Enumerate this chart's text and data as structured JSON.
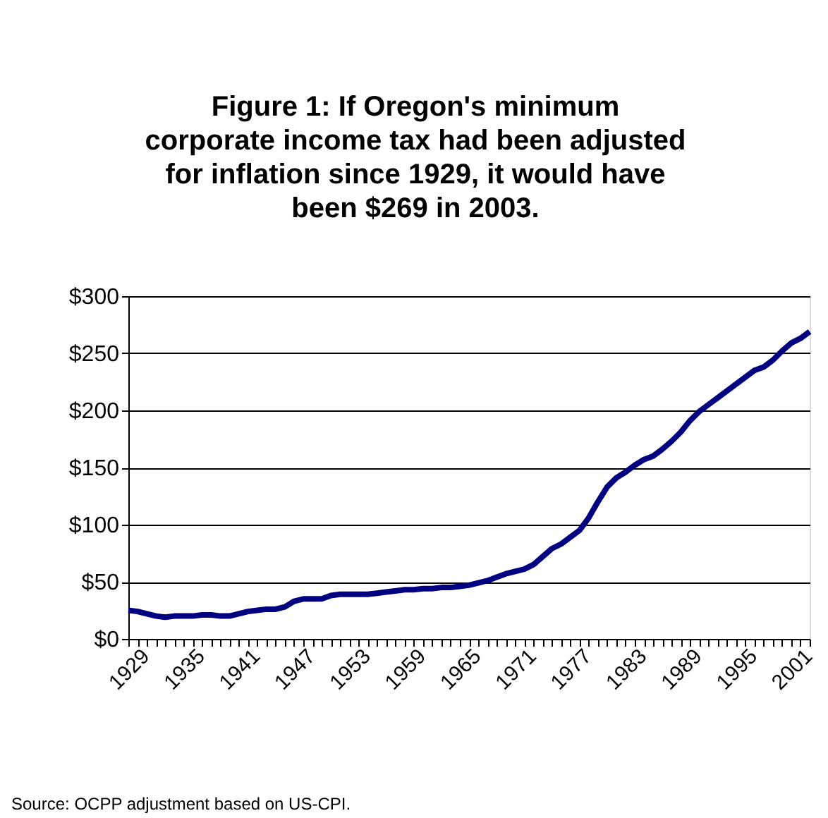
{
  "chart_data": {
    "type": "line",
    "title": "Figure 1: If Oregon's minimum\ncorporate income tax had been adjusted\nfor inflation since 1929, it would have\nbeen $269 in 2003.",
    "categories": [
      "1929",
      null,
      null,
      null,
      null,
      null,
      "1935",
      null,
      null,
      null,
      null,
      null,
      "1941",
      null,
      null,
      null,
      null,
      null,
      "1947",
      null,
      null,
      null,
      null,
      null,
      "1953",
      null,
      null,
      null,
      null,
      null,
      "1959",
      null,
      null,
      null,
      null,
      null,
      "1965",
      null,
      null,
      null,
      null,
      null,
      "1971",
      null,
      null,
      null,
      null,
      null,
      "1977",
      null,
      null,
      null,
      null,
      null,
      "1983",
      null,
      null,
      null,
      null,
      null,
      "1989",
      null,
      null,
      null,
      null,
      null,
      "1995",
      null,
      null,
      null,
      null,
      null,
      "2001",
      null,
      null
    ],
    "series": [
      {
        "color": "#000080",
        "values": [
          25,
          24,
          22,
          20,
          19,
          20,
          20,
          20,
          21,
          21,
          20,
          20,
          22,
          24,
          25,
          26,
          26,
          28,
          33,
          35,
          35,
          35,
          38,
          39,
          39,
          39,
          39,
          40,
          41,
          42,
          43,
          43,
          44,
          44,
          45,
          45,
          46,
          47,
          49,
          51,
          54,
          57,
          59,
          61,
          65,
          72,
          79,
          83,
          89,
          95,
          106,
          120,
          133,
          141,
          146,
          152,
          157,
          160,
          166,
          173,
          181,
          191,
          199,
          205,
          211,
          217,
          223,
          229,
          235,
          238,
          244,
          252,
          259,
          263,
          269
        ]
      }
    ],
    "ylim": [
      0,
      300
    ],
    "yticks": [
      {
        "value": 0,
        "label": "$0"
      },
      {
        "value": 50,
        "label": "$50"
      },
      {
        "value": 100,
        "label": "$100"
      },
      {
        "value": 150,
        "label": "$150"
      },
      {
        "value": 200,
        "label": "$200"
      },
      {
        "value": 250,
        "label": "$250"
      },
      {
        "value": 300,
        "label": "$300"
      }
    ],
    "grid": "y",
    "legend": false,
    "marker": "none",
    "line_style": "solid",
    "annotations": [
      "Source: OCPP adjustment based on US-CPI."
    ]
  }
}
